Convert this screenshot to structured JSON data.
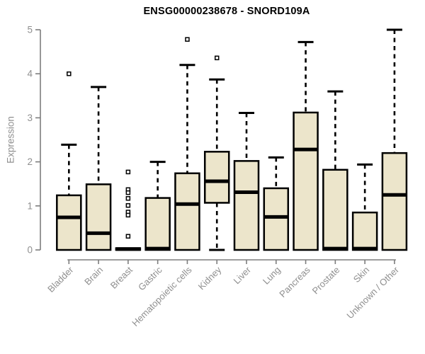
{
  "chart_data": {
    "type": "boxplot",
    "title": "ENSG00000238678 - SNORD109A",
    "xlabel": "",
    "ylabel": "Expression",
    "ylim": [
      0,
      5
    ],
    "yticks": [
      0,
      1,
      2,
      3,
      4,
      5
    ],
    "grid": false,
    "legend": "none",
    "categories": [
      "Bladder",
      "Brain",
      "Breast",
      "Gastric",
      "Hematopoietic cells",
      "Kidney",
      "Liver",
      "Lung",
      "Pancreas",
      "Prostate",
      "Skin",
      "Unknown / Other"
    ],
    "boxes": [
      {
        "category": "Bladder",
        "whisker_low": 0,
        "q1": 0,
        "median": 0.74,
        "q3": 1.24,
        "whisker_high": 2.39,
        "outliers": [
          4.0
        ]
      },
      {
        "category": "Brain",
        "whisker_low": 0,
        "q1": 0,
        "median": 0.38,
        "q3": 1.49,
        "whisker_high": 3.7,
        "outliers": []
      },
      {
        "category": "Breast",
        "whisker_low": 0,
        "q1": 0,
        "median": 0.02,
        "q3": 0.04,
        "whisker_high": 0.04,
        "outliers": [
          1.77,
          1.37,
          1.3,
          1.17,
          1.01,
          0.86,
          0.79,
          0.31
        ]
      },
      {
        "category": "Gastric",
        "whisker_low": 0,
        "q1": 0,
        "median": 0.03,
        "q3": 1.18,
        "whisker_high": 2.0,
        "outliers": []
      },
      {
        "category": "Hematopoietic cells",
        "whisker_low": 0,
        "q1": 0,
        "median": 1.04,
        "q3": 1.74,
        "whisker_high": 4.2,
        "outliers": [
          4.78
        ]
      },
      {
        "category": "Kidney",
        "whisker_low": 0,
        "q1": 1.07,
        "median": 1.56,
        "q3": 2.23,
        "whisker_high": 3.87,
        "outliers": [
          4.36
        ]
      },
      {
        "category": "Liver",
        "whisker_low": 0,
        "q1": 0,
        "median": 1.31,
        "q3": 2.02,
        "whisker_high": 3.11,
        "outliers": []
      },
      {
        "category": "Lung",
        "whisker_low": 0,
        "q1": 0,
        "median": 0.75,
        "q3": 1.4,
        "whisker_high": 2.1,
        "outliers": []
      },
      {
        "category": "Pancreas",
        "whisker_low": 0,
        "q1": 0,
        "median": 2.28,
        "q3": 3.12,
        "whisker_high": 4.72,
        "outliers": []
      },
      {
        "category": "Prostate",
        "whisker_low": 0,
        "q1": 0,
        "median": 0.03,
        "q3": 1.82,
        "whisker_high": 3.6,
        "outliers": []
      },
      {
        "category": "Skin",
        "whisker_low": 0,
        "q1": 0,
        "median": 0.03,
        "q3": 0.85,
        "whisker_high": 1.94,
        "outliers": []
      },
      {
        "category": "Unknown / Other",
        "whisker_low": 0,
        "q1": 0,
        "median": 1.25,
        "q3": 2.2,
        "whisker_high": 5.0,
        "outliers": []
      }
    ],
    "colors": {
      "box_fill": "#ECE5CB",
      "box_border": "#000000",
      "median": "#000000",
      "whisker": "#000000",
      "outlier_fill": "#ffffff",
      "outlier_border": "#000000",
      "axis": "#7d7d7d",
      "tick_label": "#8f8f8f",
      "title": "#000000"
    }
  }
}
